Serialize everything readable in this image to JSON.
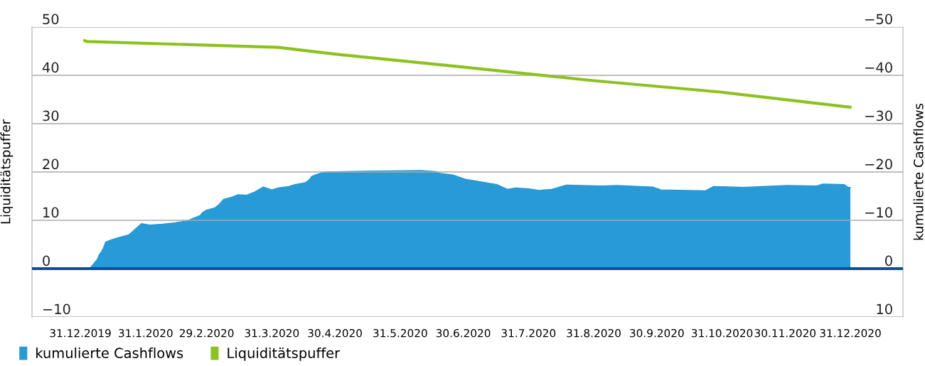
{
  "chart_data": {
    "type": "line",
    "ylabel": "Liquiditätspuffer",
    "y2label": "kumulierte Cashflows",
    "xlim": [
      "2019-12-08",
      "2021-01-25"
    ],
    "xticks": [
      {
        "value": "2019-12-31",
        "label": "31.12.2019"
      },
      {
        "value": "2020-01-31",
        "label": "31.1.2020"
      },
      {
        "value": "2020-02-29",
        "label": "29.2.2020"
      },
      {
        "value": "2020-03-31",
        "label": "31.3.2020"
      },
      {
        "value": "2020-04-30",
        "label": "30.4.2020"
      },
      {
        "value": "2020-05-31",
        "label": "31.5.2020"
      },
      {
        "value": "2020-06-30",
        "label": "30.6.2020"
      },
      {
        "value": "2020-07-31",
        "label": "31.7.2020"
      },
      {
        "value": "2020-08-31",
        "label": "31.8.2020"
      },
      {
        "value": "2020-09-30",
        "label": "30.9.2020"
      },
      {
        "value": "2020-10-31",
        "label": "31.10.2020"
      },
      {
        "value": "2020-11-30",
        "label": "30.11.2020"
      },
      {
        "value": "2020-12-31",
        "label": "31.12.2020"
      }
    ],
    "ylim": [
      -10,
      50
    ],
    "yticks": [
      {
        "value": -10,
        "label": "−10"
      },
      0,
      10,
      20,
      30,
      40,
      50
    ],
    "y2lim": [
      10,
      -50
    ],
    "y2ticks": [
      10,
      0,
      {
        "value": -10,
        "label": "−10"
      },
      {
        "value": -20,
        "label": "−20"
      },
      {
        "value": -30,
        "label": "−30"
      },
      {
        "value": -40,
        "label": "−40"
      },
      {
        "value": -50,
        "label": "−50"
      }
    ],
    "grid": "y",
    "legend": "bottom left",
    "ref_lines": [
      {
        "axis": "y",
        "value": 0,
        "color": "#0a4fa0"
      }
    ],
    "series": [
      {
        "name": "kumulierte Cashflows",
        "type": "area",
        "axis": "y2",
        "color": "#289ad6",
        "x": [
          "2020-01-05",
          "2020-01-08",
          "2020-01-09",
          "2020-01-10",
          "2020-01-11",
          "2020-01-12",
          "2020-01-15",
          "2020-01-18",
          "2020-01-23",
          "2020-01-29",
          "2020-02-02",
          "2020-02-08",
          "2020-02-14",
          "2020-02-20",
          "2020-02-22",
          "2020-02-26",
          "2020-02-27",
          "2020-02-29",
          "2020-03-04",
          "2020-03-06",
          "2020-03-08",
          "2020-03-12",
          "2020-03-15",
          "2020-03-19",
          "2020-03-23",
          "2020-03-27",
          "2020-03-31",
          "2020-04-03",
          "2020-04-08",
          "2020-04-11",
          "2020-04-16",
          "2020-04-18",
          "2020-04-19",
          "2020-04-22",
          "2020-04-26",
          "2020-05-20",
          "2020-06-10",
          "2020-06-17",
          "2020-06-19",
          "2020-06-25",
          "2020-07-01",
          "2020-07-16",
          "2020-07-21",
          "2020-07-25",
          "2020-07-31",
          "2020-08-05",
          "2020-08-11",
          "2020-08-18",
          "2020-09-04",
          "2020-09-11",
          "2020-09-28",
          "2020-10-02",
          "2020-10-23",
          "2020-10-27",
          "2020-11-10",
          "2020-11-19",
          "2020-12-01",
          "2020-12-15",
          "2020-12-18",
          "2020-12-28",
          "2020-12-30",
          "2020-12-31"
        ],
        "values": [
          -0.3,
          -1.9,
          -2.9,
          -3.5,
          -4.3,
          -5.5,
          -6.0,
          -6.4,
          -7.0,
          -9.3,
          -9.0,
          -9.2,
          -9.5,
          -9.9,
          -10.3,
          -11.0,
          -11.6,
          -12.1,
          -12.6,
          -13.3,
          -14.3,
          -14.8,
          -15.3,
          -15.2,
          -15.9,
          -16.9,
          -16.3,
          -16.7,
          -17.0,
          -17.4,
          -17.8,
          -18.5,
          -19.1,
          -19.6,
          -20.0,
          -20.2,
          -20.3,
          -20.1,
          -19.7,
          -19.4,
          -18.5,
          -17.4,
          -16.4,
          -16.7,
          -16.5,
          -16.2,
          -16.4,
          -17.3,
          -17.1,
          -17.2,
          -16.9,
          -16.3,
          -16.1,
          -17.0,
          -16.8,
          -17.0,
          -17.2,
          -17.1,
          -17.5,
          -17.4,
          -16.8,
          -16.8
        ]
      },
      {
        "name": "Liquiditätspuffer",
        "color": "#8cc21f",
        "x": [
          "2020-01-02",
          "2020-01-03",
          "2020-04-03",
          "2020-04-30",
          "2020-06-30",
          "2020-08-31",
          "2020-10-31",
          "2020-12-31"
        ],
        "values": [
          47.2,
          47.0,
          45.8,
          44.4,
          41.7,
          38.9,
          36.5,
          33.4
        ]
      }
    ]
  }
}
